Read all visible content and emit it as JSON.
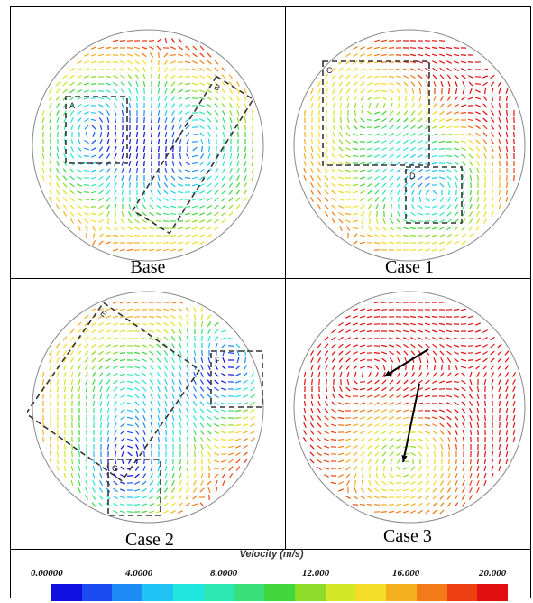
{
  "panels": [
    {
      "caption": "Base",
      "boxes": [
        "A",
        "B"
      ]
    },
    {
      "caption": "Case 1",
      "boxes": [
        "C",
        "D"
      ]
    },
    {
      "caption": "Case 2",
      "boxes": [
        "E",
        "F",
        "G"
      ]
    },
    {
      "caption": "Case 3",
      "boxes": []
    }
  ],
  "legend": {
    "title": "Velocity (m/s)",
    "ticks": [
      "0.00000",
      "4.0000",
      "8.0000",
      "12.000",
      "16.000",
      "20.000"
    ],
    "colors": [
      "#1010e0",
      "#1a4cf0",
      "#1f8cf5",
      "#20c4f5",
      "#22e6e0",
      "#2ee8b4",
      "#38e07a",
      "#40d63c",
      "#8edc2a",
      "#d4e628",
      "#f5dc28",
      "#f5b020",
      "#f27a18",
      "#ec4010",
      "#e01010"
    ]
  }
}
